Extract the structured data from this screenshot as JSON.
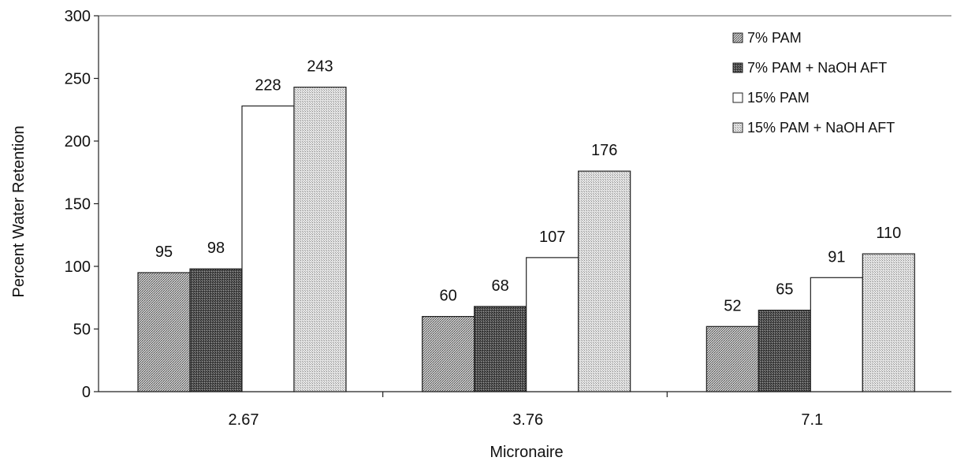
{
  "chart_data": {
    "type": "bar",
    "title": "",
    "xlabel": "Micronaire",
    "ylabel": "Percent Water Retention",
    "categories": [
      "2.67",
      "3.76",
      "7.1"
    ],
    "ylim": [
      0,
      300
    ],
    "yticks": [
      "0",
      "50",
      "100",
      "150",
      "200",
      "250",
      "300"
    ],
    "grid": false,
    "legend_position": "top-right",
    "series": [
      {
        "name": "7% PAM",
        "values": [
          95,
          60,
          52
        ],
        "data_labels": [
          "95",
          "60",
          "52"
        ],
        "pattern": "medium-stipple"
      },
      {
        "name": "7% PAM + NaOH AFT",
        "values": [
          98,
          68,
          65
        ],
        "data_labels": [
          "98",
          "68",
          "65"
        ],
        "pattern": "dark-stipple"
      },
      {
        "name": "15% PAM",
        "values": [
          228,
          107,
          91
        ],
        "data_labels": [
          "228",
          "107",
          "91"
        ],
        "pattern": "white"
      },
      {
        "name": "15% PAM + NaOH AFT",
        "values": [
          243,
          176,
          110
        ],
        "data_labels": [
          "243",
          "176",
          "110"
        ],
        "pattern": "light-stipple"
      }
    ]
  }
}
